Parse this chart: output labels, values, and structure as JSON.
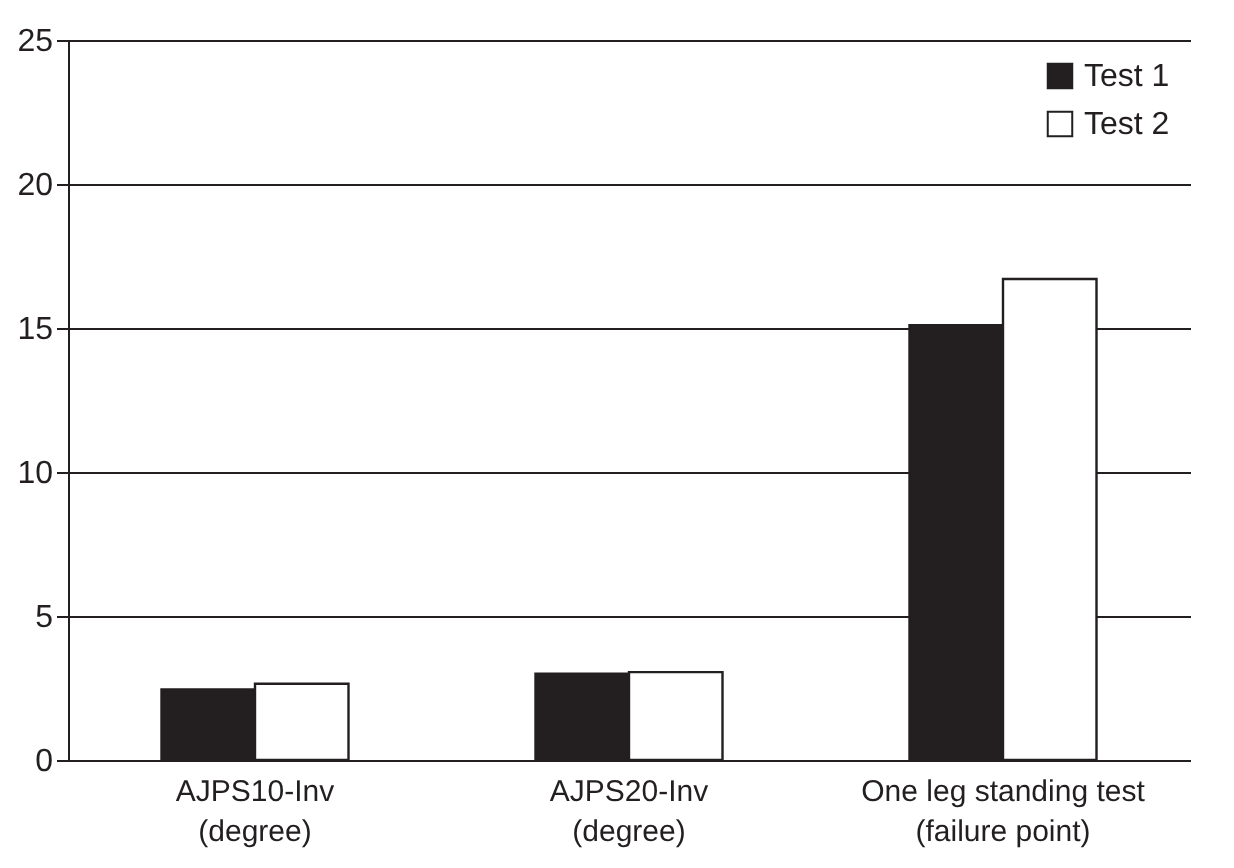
{
  "chart_data": {
    "type": "bar",
    "categories": [
      "AJPS10-Inv\n(degree)",
      "AJPS20-Inv\n(degree)",
      "One leg standing test\n(failure point)"
    ],
    "series": [
      {
        "name": "Test 1",
        "color": "#231f20",
        "values": [
          2.45,
          3.0,
          15.1
        ]
      },
      {
        "name": "Test 2",
        "color": "#ffffff",
        "values": [
          2.65,
          3.05,
          16.7
        ]
      }
    ],
    "ylim": [
      0,
      25
    ],
    "yticks": [
      0,
      5,
      10,
      15,
      20,
      25
    ],
    "grid": "y",
    "legend": "top right"
  }
}
